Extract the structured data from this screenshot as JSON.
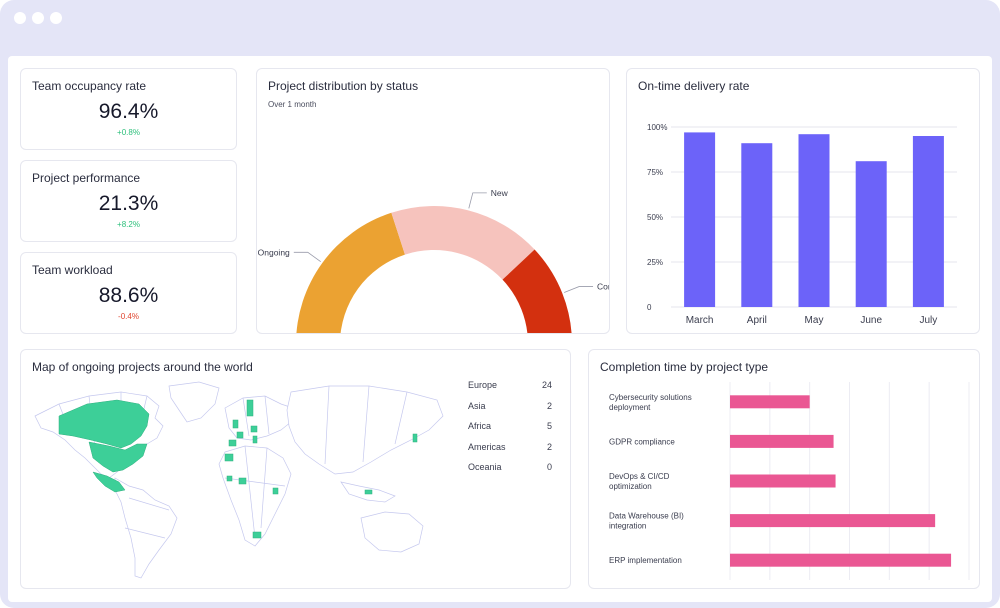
{
  "window": {
    "accent": "#e4e5f7"
  },
  "kpis": [
    {
      "title": "Team occupancy rate",
      "value": "96.4%",
      "delta": "+0.8%",
      "trend": "up"
    },
    {
      "title": "Project performance",
      "value": "21.3%",
      "delta": "+8.2%",
      "trend": "up"
    },
    {
      "title": "Team workload",
      "value": "88.6%",
      "delta": "-0.4%",
      "trend": "down"
    }
  ],
  "distribution": {
    "title": "Project distribution by status",
    "subtitle": "Over 1 month",
    "chart_data": {
      "type": "pie",
      "style": "semi-donut",
      "slices": [
        {
          "label": "Ongoing",
          "value": 40,
          "color": "#eba232"
        },
        {
          "label": "New",
          "value": 36,
          "color": "#f6c3bd"
        },
        {
          "label": "Completed",
          "value": 24,
          "color": "#d3300f"
        }
      ]
    }
  },
  "delivery": {
    "title": "On-time delivery rate",
    "chart_data": {
      "type": "bar",
      "categories": [
        "March",
        "April",
        "May",
        "June",
        "July"
      ],
      "values": [
        97,
        91,
        96,
        81,
        95
      ],
      "ylim": [
        0,
        100
      ],
      "yticks": [
        "100%",
        "75%",
        "50%",
        "25%",
        "0"
      ],
      "ytick_values": [
        100,
        75,
        50,
        25,
        0
      ],
      "grid": true,
      "color": "#6c63f9"
    }
  },
  "map": {
    "title": "Map of ongoing projects around the world",
    "highlight_color": "#3dcf98",
    "legend": [
      {
        "region": "Europe",
        "count": "24"
      },
      {
        "region": "Asia",
        "count": "2"
      },
      {
        "region": "Africa",
        "count": "5"
      },
      {
        "region": "Americas",
        "count": "2"
      },
      {
        "region": "Oceania",
        "count": "0"
      }
    ]
  },
  "completion": {
    "title": "Completion time by project type",
    "chart_data": {
      "type": "bar",
      "orientation": "horizontal",
      "categories": [
        [
          "Cybersecurity solutions",
          "deployment"
        ],
        [
          "GDPR compliance"
        ],
        [
          "DevOps & CI/CD",
          "optimization"
        ],
        [
          "Data Warehouse (BI)",
          "integration"
        ],
        [
          "ERP implementation"
        ]
      ],
      "values": [
        20,
        26,
        26.5,
        51.5,
        55.5
      ],
      "xlim": [
        0,
        60
      ],
      "grid": true,
      "color": "#ea5793"
    }
  }
}
